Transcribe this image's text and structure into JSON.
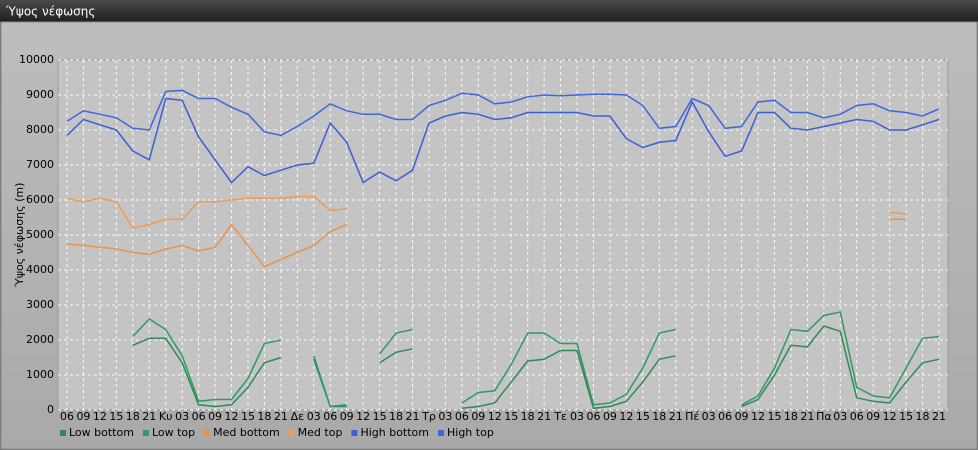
{
  "window": {
    "title": "Ύψος νέφωσης"
  },
  "chart_data": {
    "type": "line",
    "y_label": "Ύψος νέφωσης (m)",
    "categories": [
      "06",
      "09",
      "12",
      "15",
      "18",
      "21",
      "Κυ",
      "03",
      "06",
      "09",
      "12",
      "15",
      "18",
      "21",
      "Δε",
      "03",
      "06",
      "09",
      "12",
      "15",
      "18",
      "21",
      "Τρ",
      "03",
      "06",
      "09",
      "12",
      "15",
      "18",
      "21",
      "Τε",
      "03",
      "06",
      "09",
      "12",
      "15",
      "18",
      "21",
      "Πέ",
      "03",
      "06",
      "09",
      "12",
      "15",
      "18",
      "21",
      "Πα",
      "03",
      "06",
      "09",
      "12",
      "15",
      "18",
      "21"
    ],
    "series": [
      {
        "name": "Low bottom",
        "color": "#2e8b57",
        "values": [
          null,
          null,
          null,
          null,
          1850,
          2050,
          2050,
          1350,
          150,
          100,
          150,
          650,
          1350,
          1500,
          null,
          1450,
          100,
          100,
          null,
          1350,
          1650,
          1750,
          null,
          null,
          50,
          100,
          200,
          800,
          1400,
          1450,
          1700,
          1700,
          50,
          100,
          250,
          800,
          1450,
          1550,
          null,
          null,
          null,
          100,
          300,
          1000,
          1850,
          1800,
          2400,
          2250,
          350,
          250,
          200,
          800,
          1350,
          1450
        ]
      },
      {
        "name": "Low top",
        "color": "#2f9a63",
        "values": [
          null,
          null,
          null,
          null,
          2100,
          2600,
          2300,
          1550,
          250,
          300,
          300,
          900,
          1900,
          2000,
          null,
          1550,
          100,
          150,
          null,
          1600,
          2200,
          2300,
          null,
          null,
          200,
          500,
          550,
          1300,
          2200,
          2200,
          1900,
          1900,
          150,
          200,
          450,
          1200,
          2200,
          2300,
          null,
          null,
          null,
          150,
          400,
          1200,
          2300,
          2250,
          2700,
          2800,
          650,
          400,
          350,
          1200,
          2050,
          2100
        ]
      },
      {
        "name": "Med bottom",
        "color": "#e8954a",
        "values": [
          4750,
          4700,
          4650,
          4600,
          4500,
          4450,
          4600,
          4700,
          4550,
          4650,
          5300,
          4700,
          4100,
          4300,
          4500,
          4700,
          5100,
          5300,
          null,
          null,
          null,
          null,
          null,
          null,
          null,
          null,
          null,
          null,
          null,
          null,
          null,
          null,
          null,
          null,
          null,
          null,
          null,
          null,
          null,
          null,
          null,
          null,
          null,
          null,
          null,
          null,
          null,
          null,
          null,
          null,
          5450,
          5450,
          null,
          null
        ]
      },
      {
        "name": "Med top",
        "color": "#f09a52",
        "values": [
          6050,
          5950,
          6050,
          5950,
          5200,
          5300,
          5450,
          5450,
          5950,
          5950,
          6000,
          6050,
          6050,
          6050,
          6100,
          6100,
          5700,
          5750,
          null,
          null,
          null,
          null,
          null,
          null,
          null,
          null,
          null,
          null,
          null,
          null,
          null,
          null,
          null,
          null,
          null,
          null,
          null,
          null,
          null,
          null,
          null,
          null,
          null,
          null,
          null,
          null,
          null,
          null,
          null,
          null,
          5650,
          5600,
          null,
          null
        ]
      },
      {
        "name": "High bottom",
        "color": "#3a5fd6",
        "values": [
          7850,
          8300,
          8150,
          8000,
          7400,
          7150,
          8900,
          8850,
          7800,
          7150,
          6500,
          6950,
          6700,
          6850,
          7000,
          7050,
          8200,
          7650,
          6500,
          6800,
          6550,
          6850,
          8200,
          8400,
          8500,
          8450,
          8300,
          8350,
          8500,
          8500,
          8500,
          8500,
          8400,
          8400,
          7750,
          7500,
          7650,
          7700,
          8800,
          7950,
          7250,
          7400,
          8500,
          8500,
          8050,
          8000,
          8100,
          8200,
          8300,
          8250,
          8000,
          8000,
          8150,
          8300
        ]
      },
      {
        "name": "High top",
        "color": "#3d66e0",
        "values": [
          8250,
          8550,
          8450,
          8350,
          8050,
          8000,
          9100,
          9130,
          8900,
          8900,
          8650,
          8450,
          7950,
          7850,
          8100,
          8400,
          8750,
          8550,
          8450,
          8450,
          8300,
          8300,
          8700,
          8850,
          9050,
          9000,
          8750,
          8800,
          8950,
          9000,
          8980,
          9000,
          9020,
          9020,
          9000,
          8700,
          8050,
          8100,
          8900,
          8700,
          8050,
          8100,
          8800,
          8850,
          8500,
          8500,
          8350,
          8450,
          8700,
          8750,
          8550,
          8500,
          8400,
          8600
        ]
      }
    ],
    "ylim": [
      0,
      10000
    ],
    "yticks": [
      0,
      1000,
      2000,
      3000,
      4000,
      5000,
      6000,
      7000,
      8000,
      9000,
      10000
    ],
    "grid": true,
    "legend": "bottom-left"
  }
}
